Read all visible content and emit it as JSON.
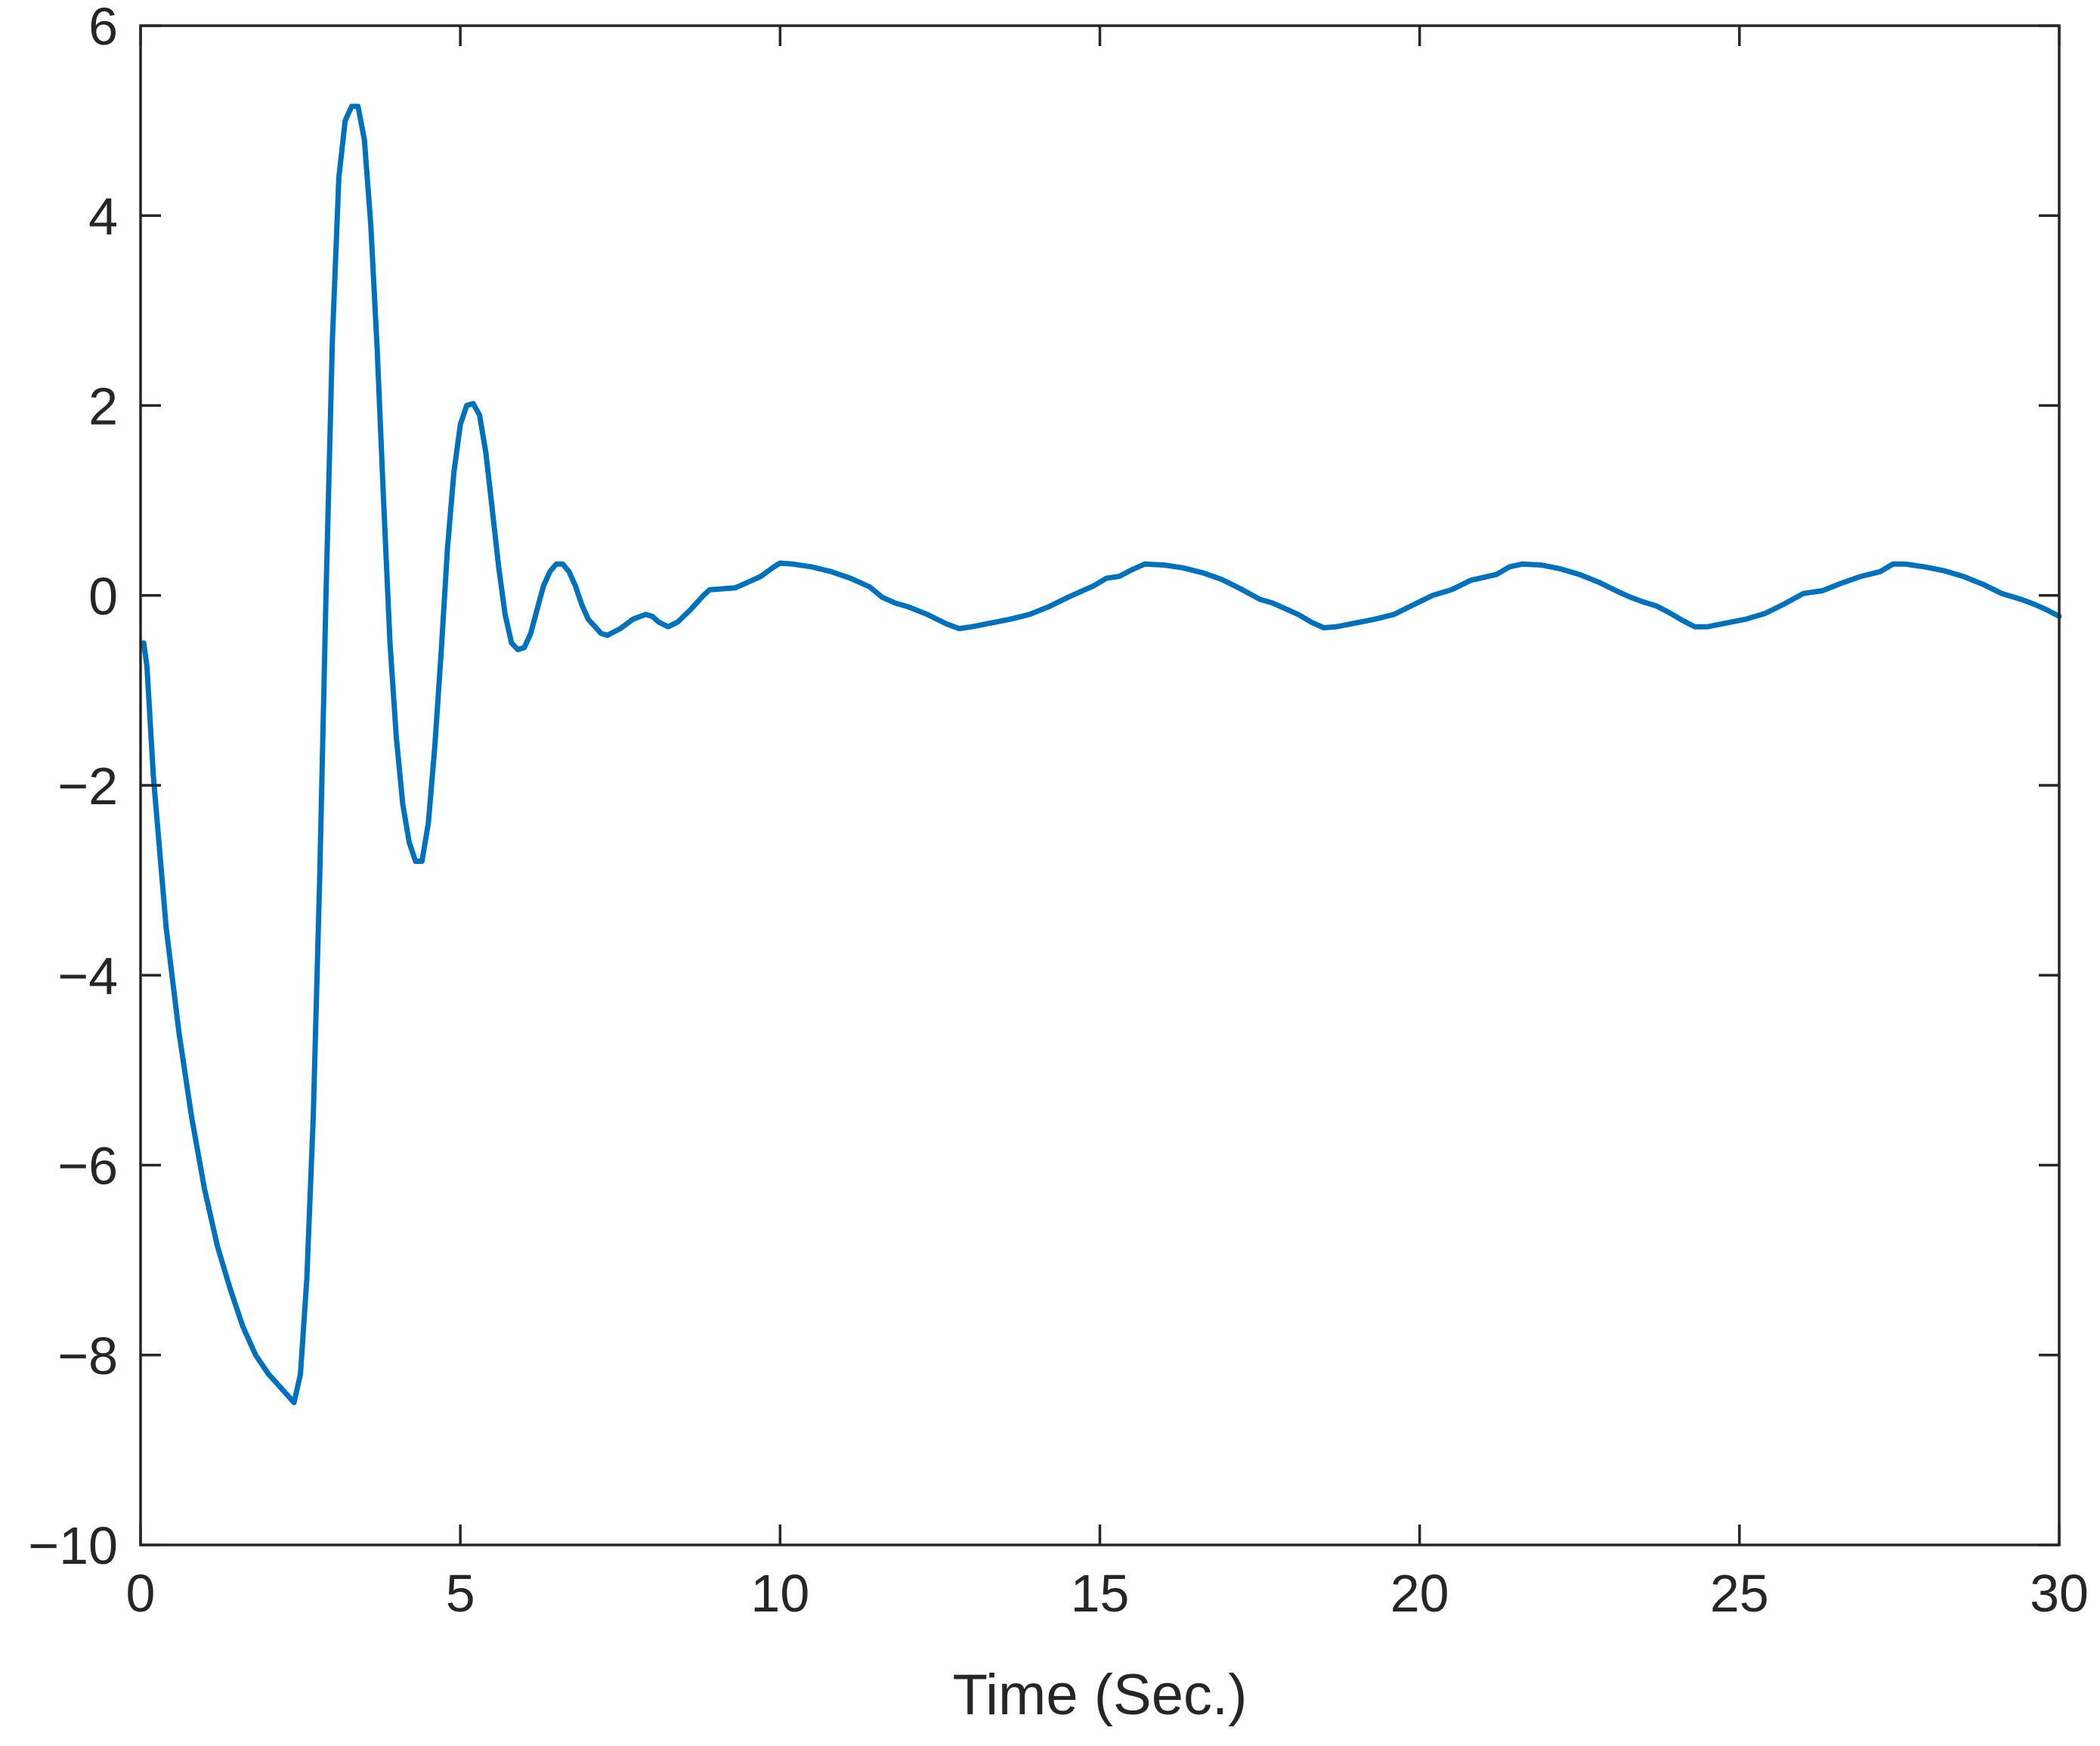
{
  "chart_data": {
    "type": "line",
    "title": "",
    "xlabel": "Time (Sec.)",
    "ylabel": "",
    "xlim": [
      0,
      30
    ],
    "ylim": [
      -10,
      6
    ],
    "x_ticks": [
      0,
      5,
      10,
      15,
      20,
      25,
      30
    ],
    "x_tick_labels": [
      "0",
      "5",
      "10",
      "15",
      "20",
      "25",
      "30"
    ],
    "y_ticks": [
      -10,
      -8,
      -6,
      -4,
      -2,
      0,
      2,
      4,
      6
    ],
    "y_tick_labels": [
      "−10",
      "−8",
      "−6",
      "−4",
      "−2",
      "0",
      "2",
      "4",
      "6"
    ],
    "grid": false,
    "box": true,
    "line_color": "#0072BD",
    "axis_color": "#262626",
    "series": [
      {
        "points": [
          [
            0.05,
            -0.5
          ],
          [
            0.1,
            -0.75
          ],
          [
            0.2,
            -1.9
          ],
          [
            0.4,
            -3.5
          ],
          [
            0.6,
            -4.6
          ],
          [
            0.8,
            -5.5
          ],
          [
            1.0,
            -6.25
          ],
          [
            1.2,
            -6.85
          ],
          [
            1.4,
            -7.3
          ],
          [
            1.6,
            -7.7
          ],
          [
            1.8,
            -8.0
          ],
          [
            2.0,
            -8.2
          ],
          [
            2.2,
            -8.35
          ],
          [
            2.4,
            -8.5
          ],
          [
            2.5,
            -8.2
          ],
          [
            2.6,
            -7.2
          ],
          [
            2.7,
            -5.5
          ],
          [
            2.8,
            -3.0
          ],
          [
            2.9,
            0.0
          ],
          [
            3.0,
            2.7
          ],
          [
            3.1,
            4.4
          ],
          [
            3.2,
            5.0
          ],
          [
            3.3,
            5.15
          ],
          [
            3.4,
            5.15
          ],
          [
            3.5,
            4.8
          ],
          [
            3.6,
            3.9
          ],
          [
            3.7,
            2.6
          ],
          [
            3.8,
            1.0
          ],
          [
            3.9,
            -0.5
          ],
          [
            4.0,
            -1.5
          ],
          [
            4.1,
            -2.2
          ],
          [
            4.2,
            -2.6
          ],
          [
            4.3,
            -2.8
          ],
          [
            4.4,
            -2.8
          ],
          [
            4.5,
            -2.4
          ],
          [
            4.6,
            -1.6
          ],
          [
            4.7,
            -0.6
          ],
          [
            4.8,
            0.5
          ],
          [
            4.9,
            1.3
          ],
          [
            5.0,
            1.8
          ],
          [
            5.1,
            2.0
          ],
          [
            5.2,
            2.02
          ],
          [
            5.3,
            1.9
          ],
          [
            5.4,
            1.5
          ],
          [
            5.5,
            0.9
          ],
          [
            5.6,
            0.3
          ],
          [
            5.7,
            -0.2
          ],
          [
            5.8,
            -0.5
          ],
          [
            5.9,
            -0.57
          ],
          [
            6.0,
            -0.55
          ],
          [
            6.1,
            -0.4
          ],
          [
            6.2,
            -0.15
          ],
          [
            6.3,
            0.1
          ],
          [
            6.4,
            0.25
          ],
          [
            6.5,
            0.33
          ],
          [
            6.6,
            0.33
          ],
          [
            6.7,
            0.25
          ],
          [
            6.8,
            0.1
          ],
          [
            6.9,
            -0.1
          ],
          [
            7.0,
            -0.25
          ],
          [
            7.2,
            -0.4
          ],
          [
            7.3,
            -0.42
          ],
          [
            7.5,
            -0.35
          ],
          [
            7.7,
            -0.25
          ],
          [
            7.9,
            -0.2
          ],
          [
            8.0,
            -0.22
          ],
          [
            8.1,
            -0.28
          ],
          [
            8.25,
            -0.33
          ],
          [
            8.4,
            -0.28
          ],
          [
            8.6,
            -0.15
          ],
          [
            8.8,
            0.0
          ],
          [
            8.9,
            0.06
          ],
          [
            9.1,
            0.07
          ],
          [
            9.3,
            0.08
          ],
          [
            9.5,
            0.14
          ],
          [
            9.7,
            0.2
          ],
          [
            9.9,
            0.3
          ],
          [
            10.0,
            0.34
          ],
          [
            10.2,
            0.33
          ],
          [
            10.5,
            0.3
          ],
          [
            10.8,
            0.25
          ],
          [
            11.1,
            0.18
          ],
          [
            11.4,
            0.09
          ],
          [
            11.6,
            -0.02
          ],
          [
            11.8,
            -0.08
          ],
          [
            12.0,
            -0.12
          ],
          [
            12.3,
            -0.2
          ],
          [
            12.6,
            -0.3
          ],
          [
            12.8,
            -0.35
          ],
          [
            13.0,
            -0.33
          ],
          [
            13.3,
            -0.29
          ],
          [
            13.6,
            -0.25
          ],
          [
            13.9,
            -0.2
          ],
          [
            14.2,
            -0.12
          ],
          [
            14.5,
            -0.02
          ],
          [
            14.7,
            0.04
          ],
          [
            14.9,
            0.1
          ],
          [
            15.1,
            0.18
          ],
          [
            15.3,
            0.2
          ],
          [
            15.5,
            0.27
          ],
          [
            15.7,
            0.33
          ],
          [
            16.0,
            0.32
          ],
          [
            16.3,
            0.29
          ],
          [
            16.6,
            0.24
          ],
          [
            16.9,
            0.17
          ],
          [
            17.2,
            0.07
          ],
          [
            17.5,
            -0.04
          ],
          [
            17.7,
            -0.08
          ],
          [
            17.9,
            -0.14
          ],
          [
            18.1,
            -0.2
          ],
          [
            18.3,
            -0.28
          ],
          [
            18.5,
            -0.34
          ],
          [
            18.7,
            -0.33
          ],
          [
            19.0,
            -0.29
          ],
          [
            19.3,
            -0.25
          ],
          [
            19.6,
            -0.2
          ],
          [
            19.9,
            -0.1
          ],
          [
            20.2,
            0.0
          ],
          [
            20.5,
            0.06
          ],
          [
            20.8,
            0.16
          ],
          [
            21.0,
            0.19
          ],
          [
            21.2,
            0.22
          ],
          [
            21.4,
            0.3
          ],
          [
            21.6,
            0.33
          ],
          [
            21.9,
            0.32
          ],
          [
            22.2,
            0.28
          ],
          [
            22.5,
            0.22
          ],
          [
            22.8,
            0.14
          ],
          [
            23.1,
            0.04
          ],
          [
            23.3,
            -0.02
          ],
          [
            23.5,
            -0.07
          ],
          [
            23.7,
            -0.11
          ],
          [
            23.9,
            -0.18
          ],
          [
            24.1,
            -0.26
          ],
          [
            24.3,
            -0.33
          ],
          [
            24.5,
            -0.33
          ],
          [
            24.8,
            -0.29
          ],
          [
            25.1,
            -0.25
          ],
          [
            25.4,
            -0.19
          ],
          [
            25.7,
            -0.09
          ],
          [
            26.0,
            0.02
          ],
          [
            26.3,
            0.05
          ],
          [
            26.6,
            0.13
          ],
          [
            26.9,
            0.2
          ],
          [
            27.2,
            0.25
          ],
          [
            27.4,
            0.33
          ],
          [
            27.6,
            0.33
          ],
          [
            27.9,
            0.3
          ],
          [
            28.2,
            0.26
          ],
          [
            28.5,
            0.2
          ],
          [
            28.8,
            0.12
          ],
          [
            29.1,
            0.02
          ],
          [
            29.4,
            -0.04
          ],
          [
            29.6,
            -0.09
          ],
          [
            29.8,
            -0.15
          ],
          [
            30.0,
            -0.22
          ]
        ]
      }
    ]
  }
}
